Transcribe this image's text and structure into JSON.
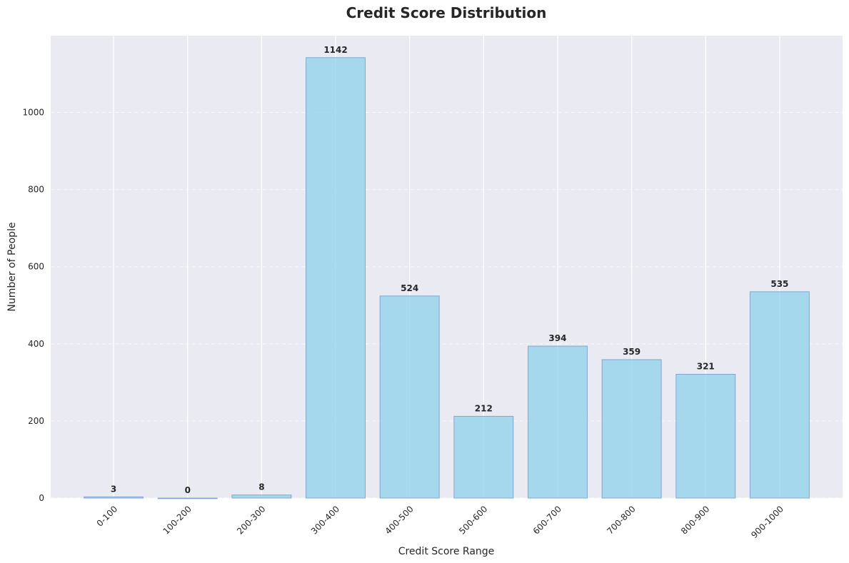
{
  "chart_data": {
    "type": "bar",
    "title": "Credit Score Distribution",
    "xlabel": "Credit Score Range",
    "ylabel": "Number of People",
    "categories": [
      "0-100",
      "100-200",
      "200-300",
      "300-400",
      "400-500",
      "500-600",
      "600-700",
      "700-800",
      "800-900",
      "900-1000"
    ],
    "values": [
      3,
      0,
      8,
      1142,
      524,
      212,
      394,
      359,
      321,
      535
    ],
    "ylim": [
      0,
      1199
    ],
    "yticks": [
      0,
      200,
      400,
      600,
      800,
      1000
    ],
    "grid": true,
    "bar_color": "#87CEEB",
    "bar_edge_color": "#7fa8d4",
    "plot_background": "#EAEAF2",
    "grid_color": "#ffffff"
  }
}
